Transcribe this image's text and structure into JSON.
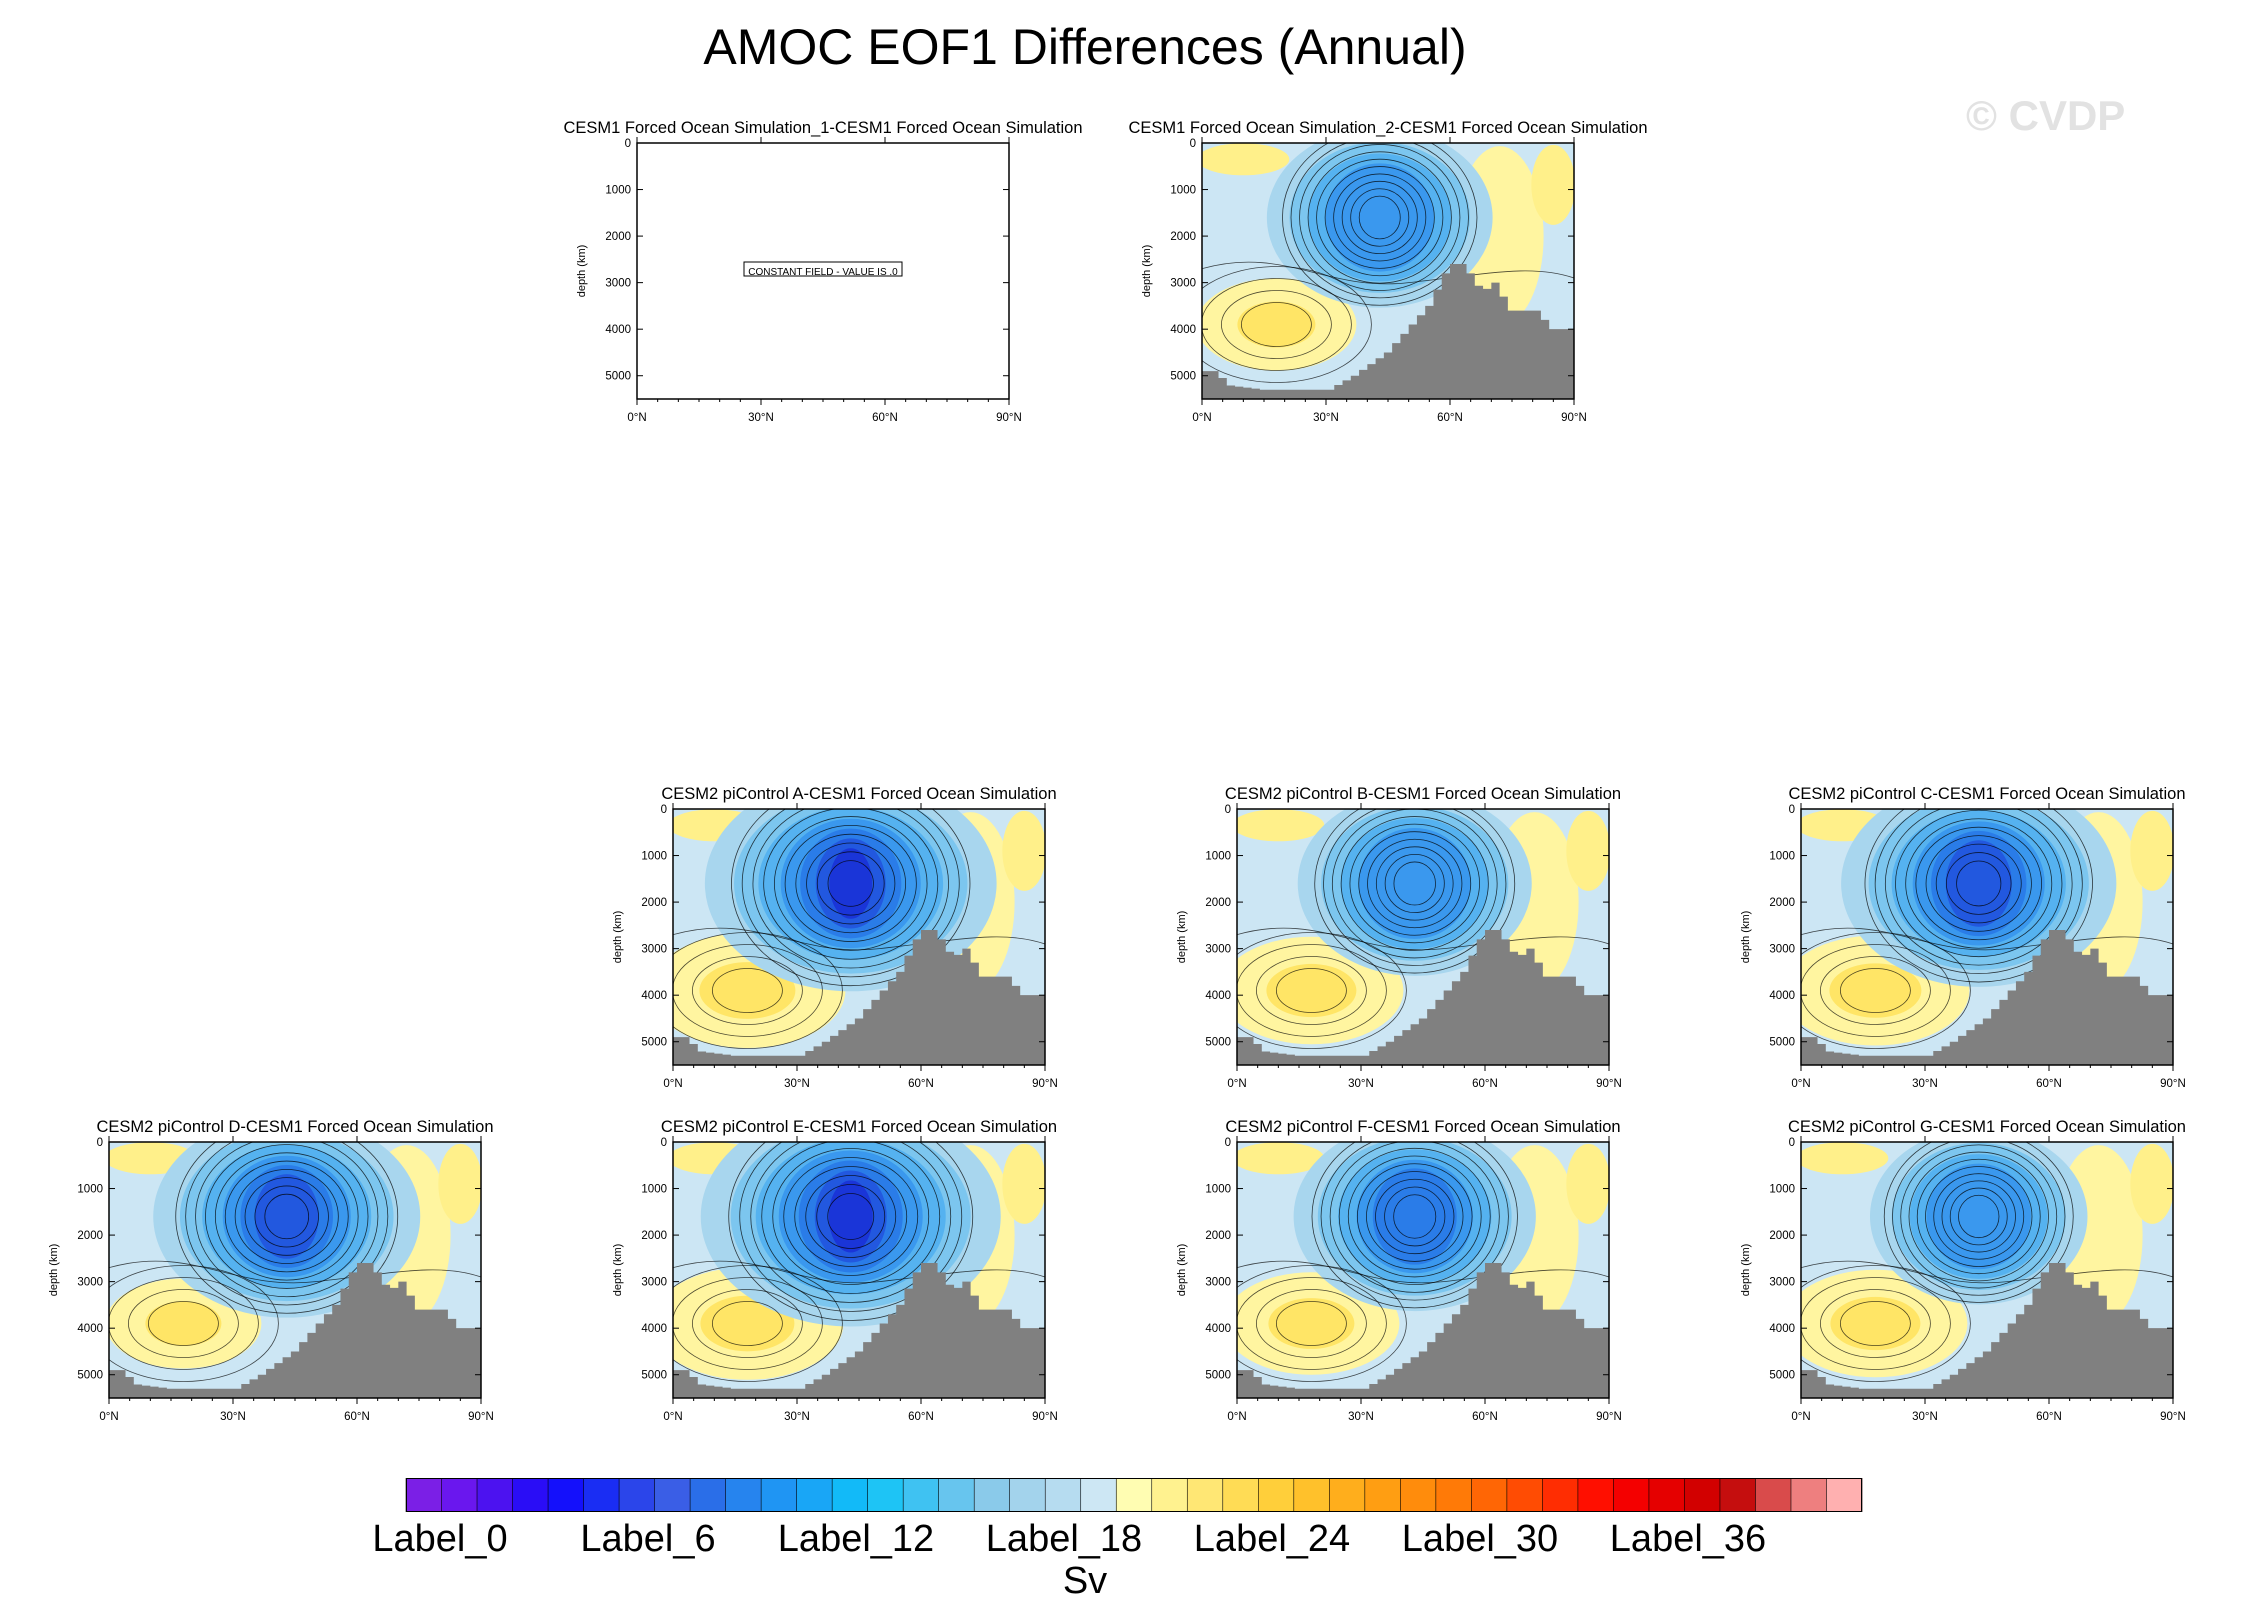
{
  "title": "AMOC EOF1 Differences (Annual)",
  "watermark": "© CVDP",
  "units": "Sv",
  "colorbar": {
    "labels": [
      "Label_0",
      "Label_6",
      "Label_12",
      "Label_18",
      "Label_24",
      "Label_30",
      "Label_36"
    ],
    "colors": [
      "#7b1fe6",
      "#6a17ee",
      "#4c12f0",
      "#2a0df6",
      "#1410fb",
      "#1a2df3",
      "#2b45ea",
      "#3a5ee6",
      "#2a6ee8",
      "#2684ee",
      "#1f95f3",
      "#19a6f6",
      "#12baf8",
      "#1ec4f5",
      "#3fc2f2",
      "#67c5ee",
      "#8acaea",
      "#a3d3ec",
      "#b6dcf0",
      "#cde7f4",
      "#fffdb2",
      "#fff28f",
      "#ffe774",
      "#ffdc55",
      "#ffcf3a",
      "#ffc12b",
      "#ffae1c",
      "#ff9e12",
      "#ff8c0c",
      "#ff7a07",
      "#ff6605",
      "#ff4c03",
      "#ff2d02",
      "#ff0f00",
      "#f40000",
      "#e50000",
      "#d20000",
      "#c50e0e",
      "#d94b4b",
      "#ee7f7f",
      "#ffb0b0"
    ]
  },
  "chart_data": [
    {
      "type": "contour",
      "title": "CESM1 Forced Ocean Simulation_1-CESM1 Forced Ocean Simulation",
      "ylabel": "depth (km)",
      "xticks": [
        "0°N",
        "30°N",
        "60°N",
        "90°N"
      ],
      "yticks": [
        "0",
        "1000",
        "2000",
        "3000",
        "4000",
        "5000"
      ],
      "xlim": [
        0,
        90
      ],
      "ylim": [
        5500,
        0
      ],
      "note": "CONSTANT FIELD - VALUE IS .0",
      "blue": 0,
      "ya": 0
    },
    {
      "type": "contour",
      "title": "CESM1 Forced Ocean Simulation_2-CESM1 Forced Ocean Simulation",
      "ylabel": "depth (km)",
      "xticks": [
        "0°N",
        "30°N",
        "60°N",
        "90°N"
      ],
      "yticks": [
        "0",
        "1000",
        "2000",
        "3000",
        "4000",
        "5000"
      ],
      "xlim": [
        0,
        90
      ],
      "ylim": [
        5500,
        0
      ],
      "blue": 0.55,
      "ya": 0.25
    },
    {
      "type": "contour",
      "title": "CESM2 piControl A-CESM1 Forced Ocean Simulation",
      "ylabel": "depth (km)",
      "xticks": [
        "0°N",
        "30°N",
        "60°N",
        "90°N"
      ],
      "yticks": [
        "0",
        "1000",
        "2000",
        "3000",
        "4000",
        "5000"
      ],
      "xlim": [
        0,
        90
      ],
      "ylim": [
        5500,
        0
      ],
      "blue": 0.95,
      "ya": 0.7
    },
    {
      "type": "contour",
      "title": "CESM2 piControl B-CESM1 Forced Ocean Simulation",
      "ylabel": "depth (km)",
      "xticks": [
        "0°N",
        "30°N",
        "60°N",
        "90°N"
      ],
      "yticks": [
        "0",
        "1000",
        "2000",
        "3000",
        "4000",
        "5000"
      ],
      "xlim": [
        0,
        90
      ],
      "ylim": [
        5500,
        0
      ],
      "blue": 0.6,
      "ya": 0.55
    },
    {
      "type": "contour",
      "title": "CESM2 piControl C-CESM1 Forced Ocean Simulation",
      "ylabel": "depth (km)",
      "xticks": [
        "0°N",
        "30°N",
        "60°N",
        "90°N"
      ],
      "yticks": [
        "0",
        "1000",
        "2000",
        "3000",
        "4000",
        "5000"
      ],
      "xlim": [
        0,
        90
      ],
      "ylim": [
        5500,
        0
      ],
      "blue": 0.85,
      "ya": 0.6
    },
    {
      "type": "contour",
      "title": "CESM2 piControl D-CESM1 Forced Ocean Simulation",
      "ylabel": "depth (km)",
      "xticks": [
        "0°N",
        "30°N",
        "60°N",
        "90°N"
      ],
      "yticks": [
        "0",
        "1000",
        "2000",
        "3000",
        "4000",
        "5000"
      ],
      "xlim": [
        0,
        90
      ],
      "ylim": [
        5500,
        0
      ],
      "blue": 0.8,
      "ya": 0.2
    },
    {
      "type": "contour",
      "title": "CESM2 piControl E-CESM1 Forced Ocean Simulation",
      "ylabel": "depth (km)",
      "xticks": [
        "0°N",
        "30°N",
        "60°N",
        "90°N"
      ],
      "yticks": [
        "0",
        "1000",
        "2000",
        "3000",
        "4000",
        "5000"
      ],
      "xlim": [
        0,
        90
      ],
      "ylim": [
        5500,
        0
      ],
      "blue": 1.0,
      "ya": 0.65
    },
    {
      "type": "contour",
      "title": "CESM2 piControl F-CESM1 Forced Ocean Simulation",
      "ylabel": "depth (km)",
      "xticks": [
        "0°N",
        "30°N",
        "60°N",
        "90°N"
      ],
      "yticks": [
        "0",
        "1000",
        "2000",
        "3000",
        "4000",
        "5000"
      ],
      "xlim": [
        0,
        90
      ],
      "ylim": [
        5500,
        0
      ],
      "blue": 0.65,
      "ya": 0.45
    },
    {
      "type": "contour",
      "title": "CESM2 piControl G-CESM1 Forced Ocean Simulation",
      "ylabel": "depth (km)",
      "xticks": [
        "0°N",
        "30°N",
        "60°N",
        "90°N"
      ],
      "yticks": [
        "0",
        "1000",
        "2000",
        "3000",
        "4000",
        "5000"
      ],
      "xlim": [
        0,
        90
      ],
      "ylim": [
        5500,
        0
      ],
      "blue": 0.5,
      "ya": 0.55
    }
  ]
}
